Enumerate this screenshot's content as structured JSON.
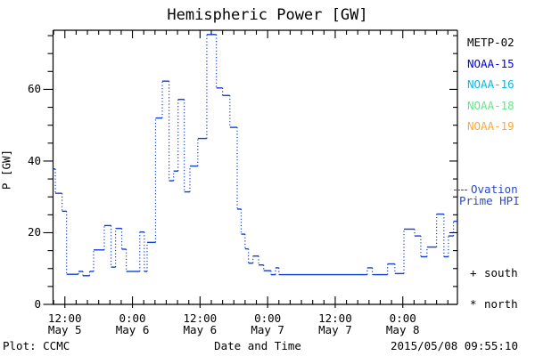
{
  "chart_data": {
    "type": "line",
    "title": "Hemispheric Power [GW]",
    "xlabel": "Date and Time",
    "ylabel": "P [GW]",
    "x_unit": "hours from 2015-05-05 00:00",
    "x_range_hours": [
      9.9,
      81.7
    ],
    "ylim": [
      0,
      76.5
    ],
    "y_major_ticks": [
      0,
      20,
      40,
      60
    ],
    "y_minor_step": 5,
    "y_max_tick": 75,
    "x_minor_step_hours": 2,
    "x_major_ticks": [
      {
        "h": 12,
        "time": "12:00",
        "date": "May 5"
      },
      {
        "h": 24,
        "time": "0:00",
        "date": "May 6"
      },
      {
        "h": 36,
        "time": "12:00",
        "date": "May 6"
      },
      {
        "h": 48,
        "time": "0:00",
        "date": "May 7"
      },
      {
        "h": 60,
        "time": "12:00",
        "date": "May 7"
      },
      {
        "h": 72,
        "time": "0:00",
        "date": "May 8"
      }
    ],
    "grid": false,
    "series": [
      {
        "name": "Ovation Prime HPI",
        "color": "#1240d0",
        "style": "stepped bars with dotted connectors",
        "segments_h1_h2_gw": [
          [
            9.9,
            10.3,
            37.8
          ],
          [
            10.3,
            11.5,
            31.0
          ],
          [
            11.5,
            12.3,
            26.0
          ],
          [
            12.3,
            14.4,
            8.4
          ],
          [
            14.4,
            15.2,
            9.2
          ],
          [
            15.2,
            16.4,
            8.0
          ],
          [
            16.4,
            17.1,
            9.2
          ],
          [
            17.1,
            19.0,
            15.2
          ],
          [
            19.0,
            20.2,
            22.0
          ],
          [
            20.2,
            21.0,
            10.4
          ],
          [
            21.0,
            22.1,
            21.2
          ],
          [
            22.1,
            22.9,
            15.4
          ],
          [
            22.9,
            25.3,
            9.2
          ],
          [
            25.3,
            26.1,
            20.2
          ],
          [
            26.1,
            26.6,
            9.2
          ],
          [
            26.6,
            28.1,
            17.3
          ],
          [
            28.1,
            29.3,
            52.0
          ],
          [
            29.3,
            30.5,
            62.3
          ],
          [
            30.5,
            31.3,
            34.5
          ],
          [
            31.3,
            32.1,
            37.2
          ],
          [
            32.1,
            33.2,
            57.2
          ],
          [
            33.2,
            34.2,
            31.4
          ],
          [
            34.2,
            35.6,
            38.6
          ],
          [
            35.6,
            37.2,
            46.3
          ],
          [
            37.2,
            38.9,
            75.3
          ],
          [
            38.9,
            40.0,
            60.4
          ],
          [
            40.0,
            41.3,
            58.3
          ],
          [
            41.3,
            42.6,
            49.4
          ],
          [
            42.6,
            43.3,
            26.6
          ],
          [
            43.3,
            44.0,
            19.6
          ],
          [
            44.0,
            44.6,
            15.5
          ],
          [
            44.6,
            45.4,
            11.5
          ],
          [
            45.4,
            46.4,
            13.5
          ],
          [
            46.4,
            47.3,
            11.0
          ],
          [
            47.3,
            48.6,
            9.4
          ],
          [
            48.6,
            49.4,
            8.3
          ],
          [
            49.4,
            50.0,
            10.2
          ],
          [
            50.0,
            65.7,
            8.3
          ],
          [
            65.7,
            66.6,
            10.2
          ],
          [
            66.6,
            69.3,
            8.3
          ],
          [
            69.3,
            70.6,
            11.3
          ],
          [
            70.6,
            72.2,
            8.6
          ],
          [
            72.2,
            74.1,
            21.0
          ],
          [
            74.1,
            75.2,
            19.1
          ],
          [
            75.2,
            76.3,
            13.3
          ],
          [
            76.3,
            78.0,
            16.0
          ],
          [
            78.0,
            79.3,
            25.2
          ],
          [
            79.3,
            80.1,
            13.3
          ],
          [
            80.1,
            81.0,
            19.1
          ],
          [
            81.0,
            81.7,
            23.2
          ]
        ]
      }
    ],
    "legend_position": "right"
  },
  "legend": {
    "items": [
      {
        "label": "METP-02",
        "color": "#000000"
      },
      {
        "label": "NOAA-15",
        "color": "#0000e8"
      },
      {
        "label": "NOAA-16",
        "color": "#00bbee"
      },
      {
        "label": "NOAA-18",
        "color": "#63e689"
      },
      {
        "label": "NOAA-19",
        "color": "#ffa833"
      }
    ]
  },
  "annotations": {
    "ovation_line1": "Ovation",
    "ovation_line2": "Prime HPI",
    "ovation_color": "#2b49cc",
    "south_marker": "+",
    "south_label": "south",
    "north_marker": "*",
    "north_label": "north"
  },
  "footer": {
    "left": "Plot: CCMC",
    "center": "Date and Time",
    "right": "2015/05/08 09:55:10"
  }
}
